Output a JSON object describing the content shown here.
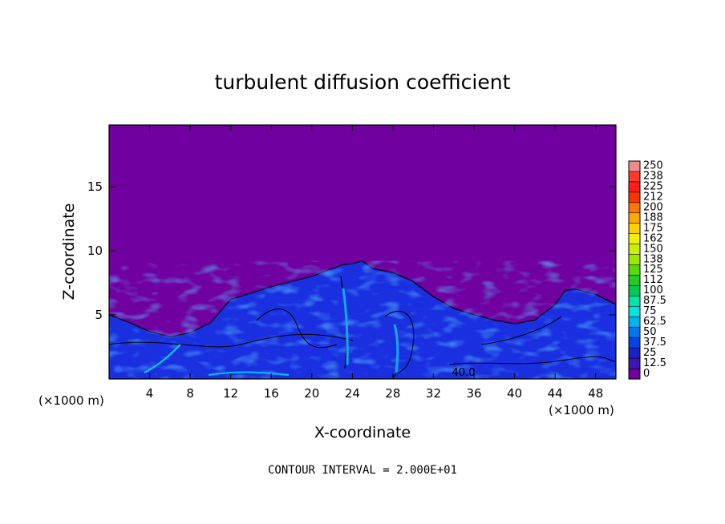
{
  "chart_data": {
    "type": "heatmap",
    "title": "turbulent diffusion coefficient",
    "xlabel": "X-coordinate",
    "ylabel": "Z-coordinate",
    "x_unit_left": "(×1000 m)",
    "x_unit_right": "(×1000 m)",
    "xlim": [
      0,
      50
    ],
    "ylim": [
      0,
      19.8
    ],
    "x_ticks": [
      "4",
      "8",
      "12",
      "16",
      "20",
      "24",
      "28",
      "32",
      "36",
      "40",
      "44",
      "48"
    ],
    "y_ticks": [
      "5",
      "10",
      "15"
    ],
    "contour_label": "40.0",
    "footer": "CONTOUR INTERVAL = 2.000E+01",
    "colorbar": {
      "labels": [
        "250",
        "238",
        "225",
        "212",
        "200",
        "188",
        "175",
        "162",
        "150",
        "138",
        "125",
        "112",
        "100",
        "87.5",
        "75",
        "62.5",
        "50",
        "37.5",
        "25",
        "12.5",
        "0"
      ],
      "colors": [
        "#f28c8c",
        "#ff3a2a",
        "#ff1c1c",
        "#ff3300",
        "#ff7700",
        "#ffaa00",
        "#ffd000",
        "#f2f200",
        "#c8f000",
        "#9ae800",
        "#55dd00",
        "#22cc22",
        "#00cc55",
        "#00e5a8",
        "#00e5e0",
        "#00b4f0",
        "#0077f0",
        "#0044e6",
        "#1a22cc",
        "#3a17b0",
        "#7000a0"
      ]
    },
    "boundary_profile": {
      "x": [
        0,
        2,
        4,
        6,
        8,
        10,
        12,
        14,
        16,
        18,
        20,
        22,
        23,
        24,
        25,
        26,
        28,
        30,
        32,
        34,
        36,
        38,
        40,
        42,
        44,
        45,
        46,
        48,
        50
      ],
      "z": [
        5.0,
        4.4,
        3.7,
        3.3,
        3.6,
        4.4,
        6.2,
        6.7,
        7.2,
        7.6,
        8.0,
        8.6,
        8.9,
        9.0,
        9.2,
        8.6,
        8.3,
        7.6,
        6.4,
        5.5,
        5.0,
        4.6,
        4.3,
        4.6,
        5.8,
        6.9,
        7.0,
        6.6,
        5.8
      ]
    }
  }
}
